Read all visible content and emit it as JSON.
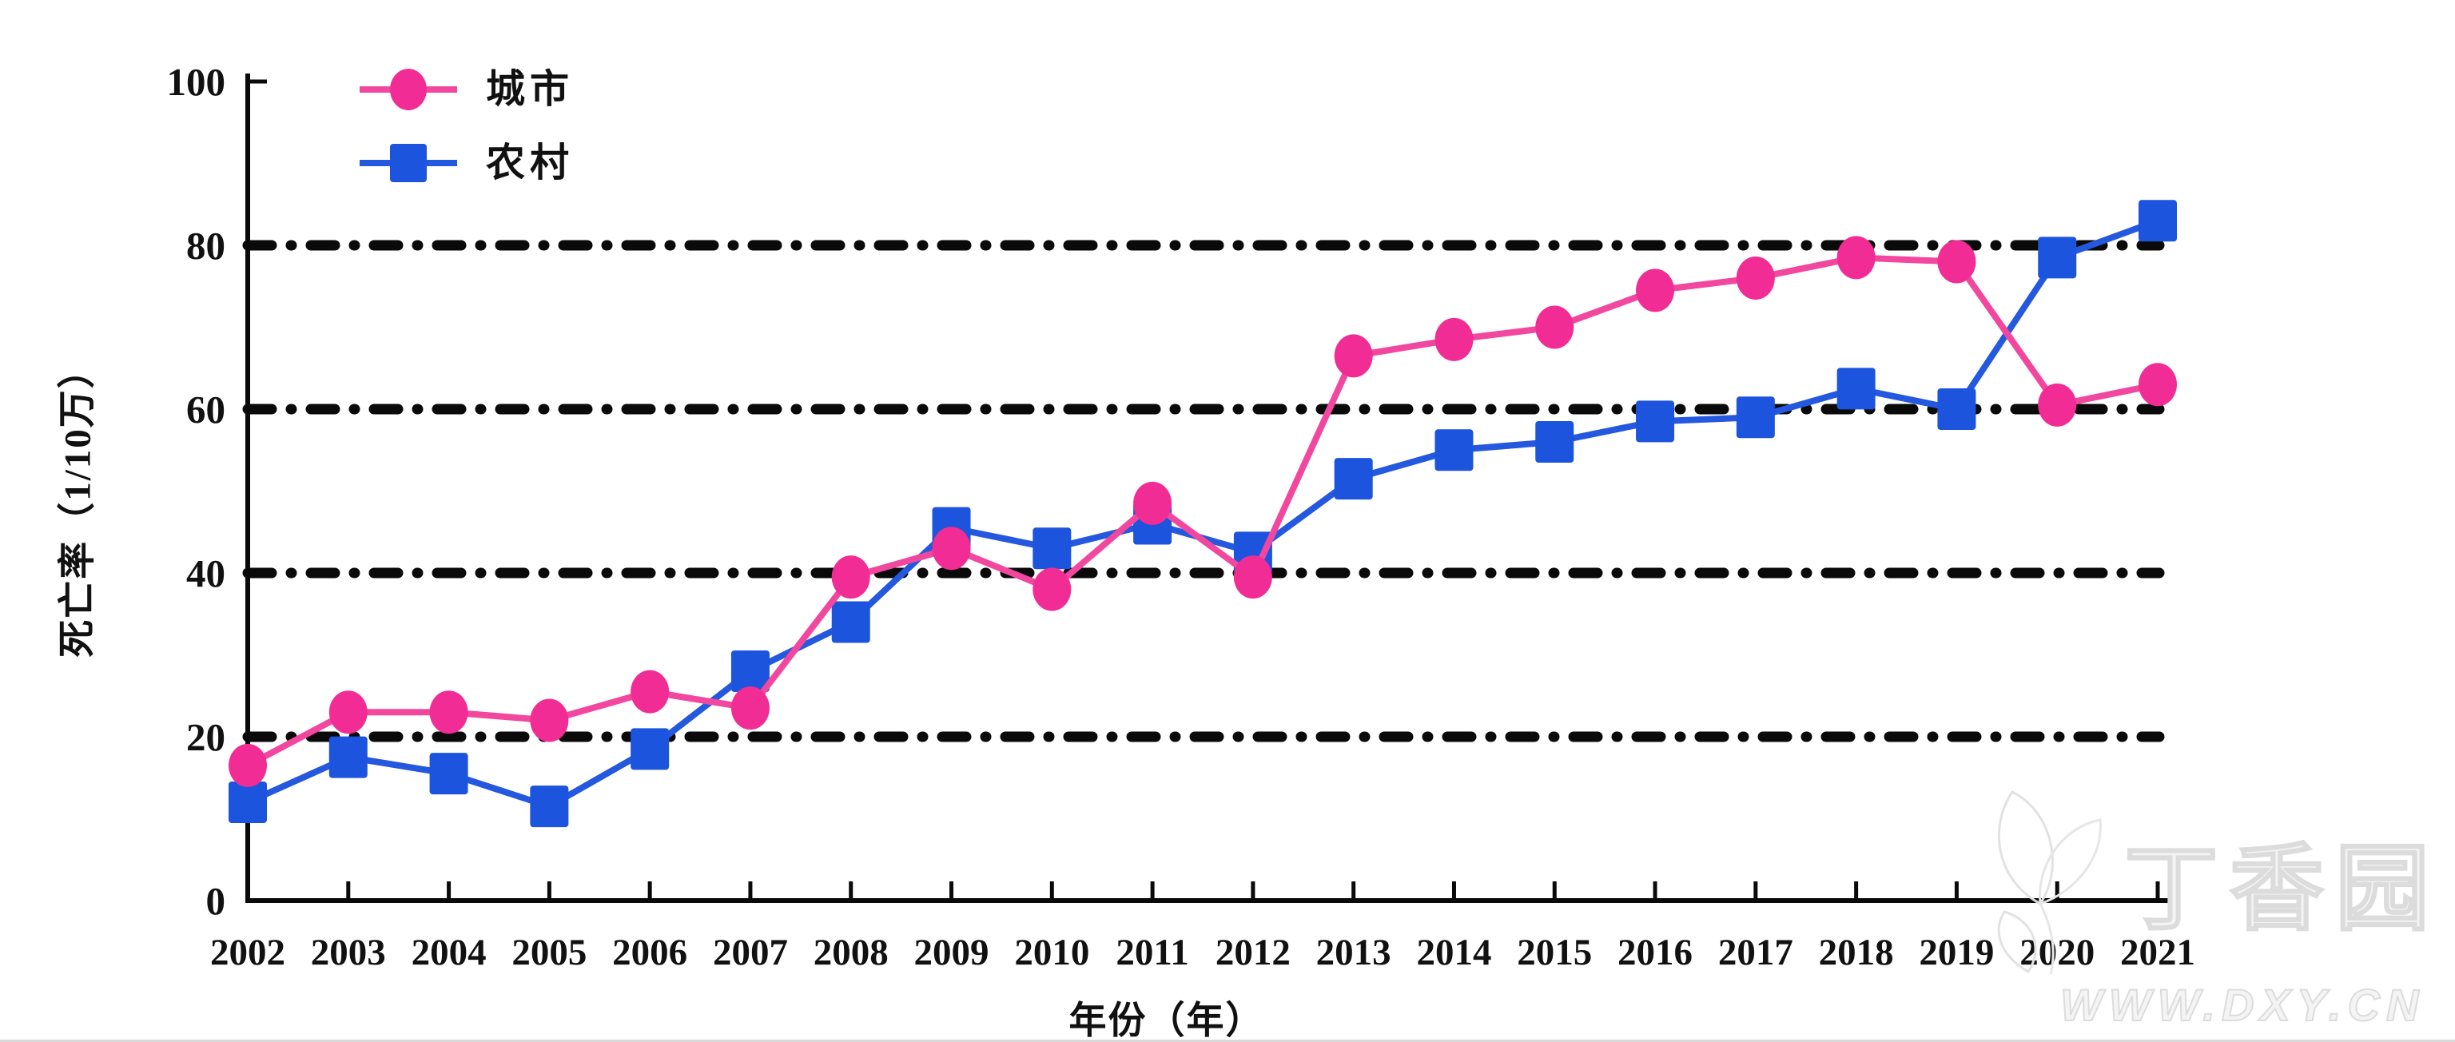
{
  "chart_data": {
    "type": "line",
    "title": "",
    "x": [
      "2002",
      "2003",
      "2004",
      "2005",
      "2006",
      "2007",
      "2008",
      "2009",
      "2010",
      "2011",
      "2012",
      "2013",
      "2014",
      "2015",
      "2016",
      "2017",
      "2018",
      "2019",
      "2020",
      "2021"
    ],
    "series": [
      {
        "name": "城市",
        "marker": "circle",
        "color": "#f12d95",
        "line_color": "#f2479e",
        "values": [
          16.5,
          23,
          23,
          22,
          25.5,
          23.5,
          39.5,
          43,
          38,
          48.5,
          39.5,
          66.5,
          68.5,
          70,
          74.5,
          76,
          78.5,
          78,
          60.5,
          63
        ]
      },
      {
        "name": "农村",
        "marker": "square",
        "color": "#1c54dd",
        "line_color": "#2458de",
        "values": [
          12,
          17.5,
          15.5,
          11.5,
          18.5,
          28,
          34,
          45.5,
          43,
          46,
          42.5,
          51.5,
          55,
          56,
          58.5,
          59,
          62.5,
          60,
          78.5,
          83
        ]
      }
    ],
    "xlabel": "年份（年）",
    "ylabel": "死亡率（1/10万）",
    "ylim": [
      0,
      100
    ],
    "yticks": [
      0,
      20,
      40,
      60,
      80,
      100
    ],
    "gridlines": [
      20,
      40,
      60,
      80
    ],
    "grid_style": "dash-dot",
    "grid_on": true,
    "legend_position": "top-left"
  },
  "colors": {
    "urban": "#f12d95",
    "urban_line": "#f2479e",
    "rural": "#1c54dd",
    "rural_line": "#2458de",
    "axis": "#0a0a0a",
    "grid": "#0a0a0a",
    "watermark": "#dcdcdc"
  },
  "watermark": {
    "brand": "丁香园",
    "site": "WWW.DXY.CN"
  }
}
